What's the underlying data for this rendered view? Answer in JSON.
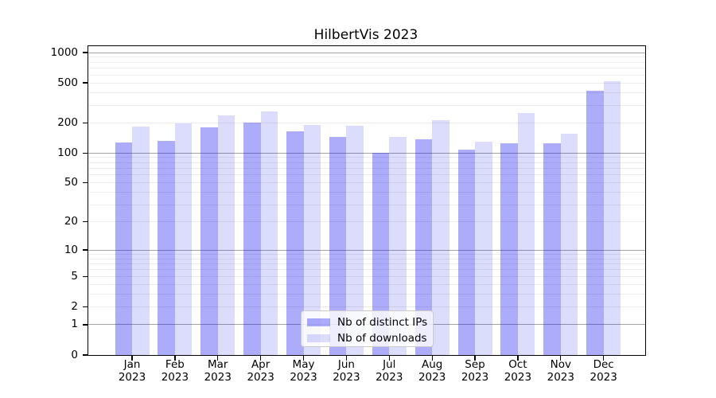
{
  "title": "HilbertVis 2023",
  "chart_data": {
    "type": "bar",
    "title": "HilbertVis 2023",
    "categories": [
      "Jan",
      "Feb",
      "Mar",
      "Apr",
      "May",
      "Jun",
      "Jul",
      "Aug",
      "Sep",
      "Oct",
      "Nov",
      "Dec"
    ],
    "category_year": "2023",
    "series": [
      {
        "name": "Nb of distinct IPs",
        "color": "rgba(16,16,240,0.35)",
        "values": [
          127,
          132,
          179,
          202,
          164,
          145,
          100,
          138,
          108,
          125,
          124,
          415
        ]
      },
      {
        "name": "Nb of downloads",
        "color": "rgba(16,16,240,0.145)",
        "values": [
          184,
          196,
          235,
          258,
          191,
          187,
          145,
          214,
          130,
          251,
          155,
          515
        ]
      }
    ],
    "xlabel": "",
    "ylabel": "",
    "yscale": "log1p",
    "ylim": [
      0,
      1160
    ],
    "yticks": [
      1000,
      500,
      200,
      100,
      50,
      20,
      10,
      5,
      2,
      1,
      0
    ],
    "grid_major": [
      1,
      10,
      100,
      1000
    ],
    "grid_minor": [
      2,
      3,
      4,
      5,
      6,
      7,
      8,
      9,
      20,
      30,
      40,
      50,
      60,
      70,
      80,
      90,
      200,
      300,
      400,
      500,
      600,
      700,
      800,
      900
    ],
    "legend_position": "lower center",
    "colors": {
      "bar_distinct_ips": "rgba(16,16,240,0.35)",
      "bar_downloads": "rgba(16,16,240,0.145)",
      "grid_major": "#a3a3a3",
      "grid_minor": "#ececec",
      "axis": "#000000"
    }
  }
}
